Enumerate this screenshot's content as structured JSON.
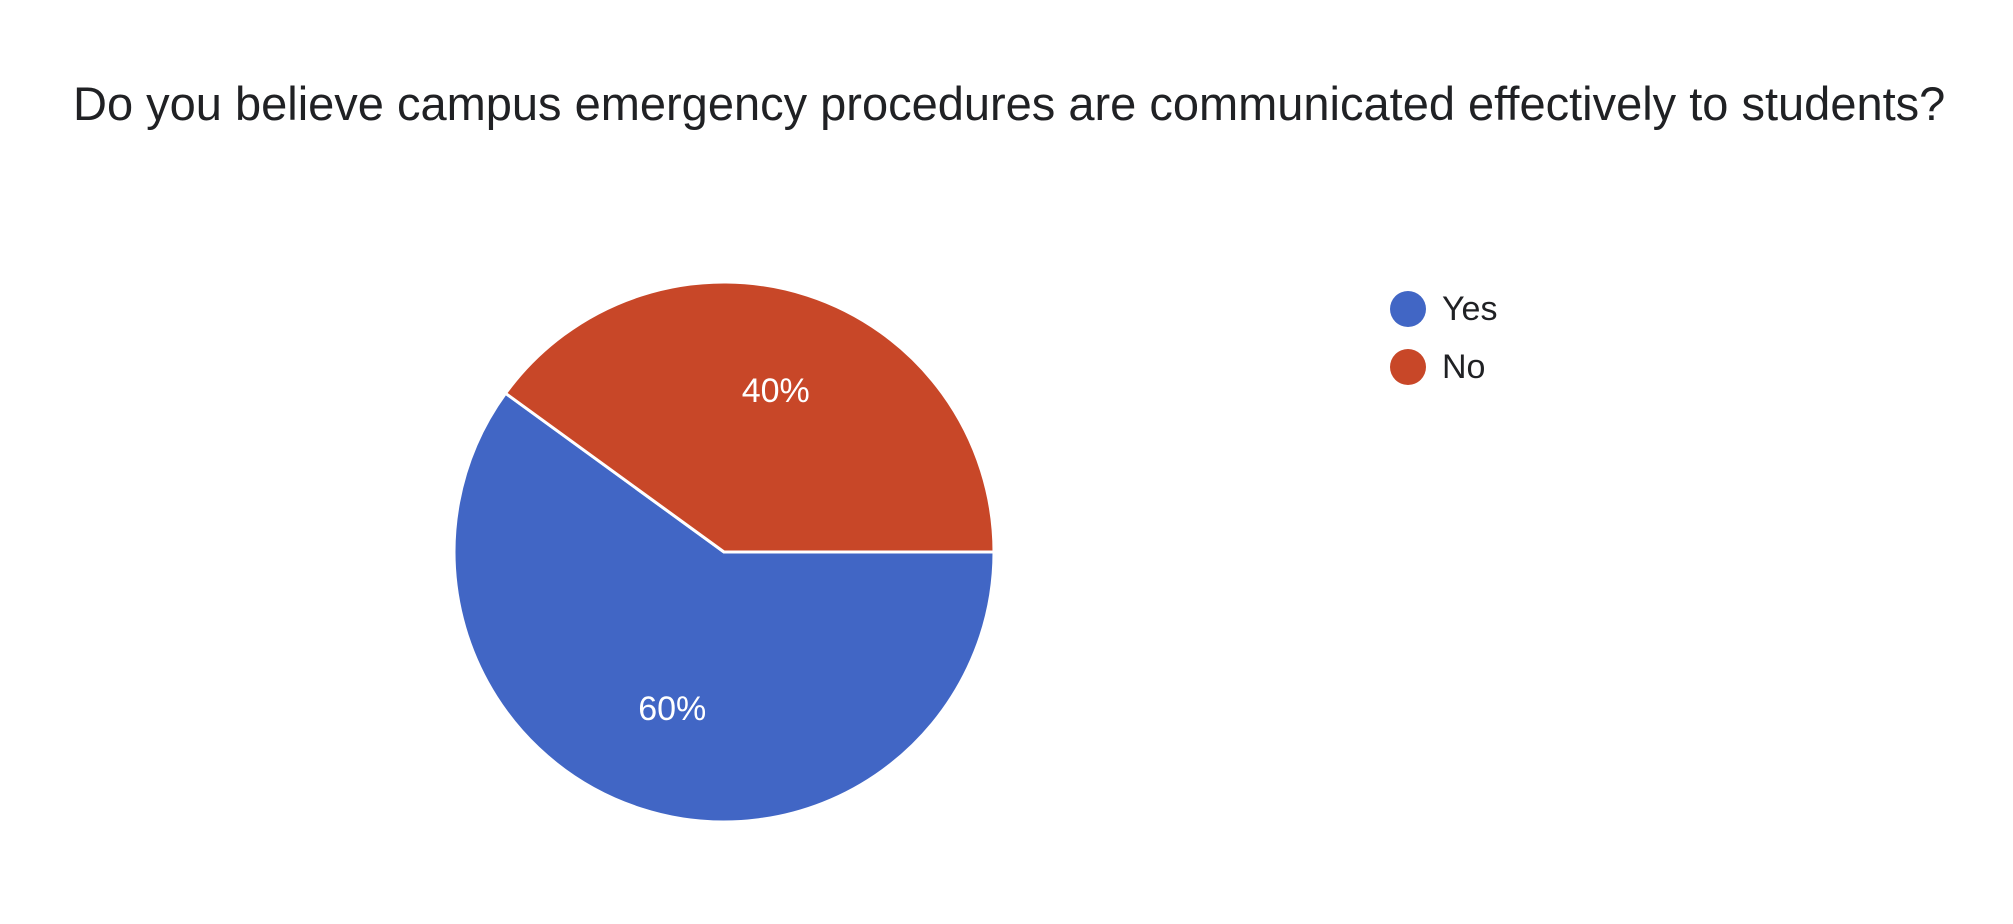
{
  "chart_data": {
    "type": "pie",
    "title": "Do you believe campus emergency procedures are communicated effectively to students?",
    "categories": [
      "Yes",
      "No"
    ],
    "values": [
      60,
      40
    ],
    "labels": [
      "60%",
      "40%"
    ],
    "colors": [
      "#4166c5",
      "#c84728"
    ],
    "legend_position": "right"
  }
}
